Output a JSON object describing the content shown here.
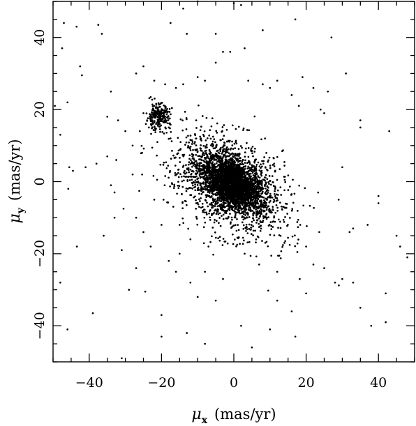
{
  "chart_data": {
    "type": "scatter",
    "title": "",
    "xlabel": {
      "symbol": "μ",
      "subscript": "x",
      "units": "(mas/yr)"
    },
    "ylabel": {
      "symbol": "μ",
      "subscript": "y",
      "units": "(mas/yr)"
    },
    "xlim": [
      -50,
      50
    ],
    "ylim": [
      -50,
      50
    ],
    "x_ticks": [
      -40,
      -20,
      0,
      20,
      40
    ],
    "y_ticks": [
      -40,
      -20,
      0,
      20,
      40
    ],
    "x_tick_labels": [
      "−40",
      "−20",
      "0",
      "20",
      "40"
    ],
    "y_tick_labels": [
      "−40",
      "−20",
      "0",
      "20",
      "40"
    ],
    "grid": false,
    "legend": "none",
    "marker_color": "#000000",
    "series": [
      {
        "distribution": "dense clump of stars centred near (0, 0) with broad halo; secondary clump near (−21, 18)",
        "points": [
          [
            -47,
            44
          ],
          [
            -43.5,
            43
          ],
          [
            -37.5,
            43.5
          ],
          [
            -36.5,
            41
          ],
          [
            -47.5,
            37
          ],
          [
            -42.5,
            32
          ],
          [
            -42,
            29.5
          ],
          [
            -46,
            22
          ],
          [
            -49.5,
            21
          ],
          [
            -48,
            13
          ],
          [
            -45.5,
            4
          ],
          [
            -44.5,
            3
          ],
          [
            -41,
            4
          ],
          [
            -35,
            7
          ],
          [
            -32.5,
            6
          ],
          [
            -45.8,
            -2
          ],
          [
            -43.4,
            -18
          ],
          [
            -36,
            -15
          ],
          [
            -33,
            -10
          ],
          [
            -30.5,
            -7.5
          ],
          [
            -29,
            -30
          ],
          [
            -31,
            -49
          ],
          [
            -39,
            -36.5
          ],
          [
            -24.5,
            -30.5
          ],
          [
            -20,
            -37
          ],
          [
            -13,
            -42
          ],
          [
            -20,
            -43
          ],
          [
            -8,
            -45
          ],
          [
            -10,
            -32
          ],
          [
            -5,
            -33
          ],
          [
            -27,
            -10
          ],
          [
            -25,
            -14
          ],
          [
            -23,
            -18
          ],
          [
            -22,
            -5
          ],
          [
            -18,
            -22
          ],
          [
            -16,
            -25
          ],
          [
            -15,
            -12
          ],
          [
            -12,
            -28
          ],
          [
            -8,
            -25
          ],
          [
            -3,
            -27
          ],
          [
            -27,
            30
          ],
          [
            -25,
            32
          ],
          [
            -22,
            28
          ],
          [
            -19,
            27
          ],
          [
            -16,
            26
          ],
          [
            -14,
            27
          ],
          [
            -10,
            29
          ],
          [
            -8,
            28
          ],
          [
            -5,
            33
          ],
          [
            -3,
            36
          ],
          [
            0,
            49.5
          ],
          [
            2,
            49
          ],
          [
            -1,
            36
          ],
          [
            3,
            37
          ],
          [
            4,
            28
          ],
          [
            8,
            27
          ],
          [
            10,
            26
          ],
          [
            12,
            28
          ],
          [
            16,
            24
          ],
          [
            18,
            21
          ],
          [
            24,
            20
          ],
          [
            25,
            19
          ],
          [
            29,
            -5
          ],
          [
            30,
            4
          ],
          [
            35,
            17
          ],
          [
            35,
            15
          ],
          [
            40,
            -4
          ],
          [
            40,
            -6
          ],
          [
            43,
            14
          ],
          [
            45,
            -15
          ],
          [
            46,
            -18
          ],
          [
            48,
            -21
          ],
          [
            30,
            -27
          ],
          [
            33,
            -28
          ],
          [
            35,
            -35
          ],
          [
            38,
            -40
          ],
          [
            42,
            -39
          ],
          [
            42,
            -31
          ],
          [
            16,
            -36
          ],
          [
            12,
            -33
          ],
          [
            10,
            -41
          ],
          [
            17,
            -43
          ],
          [
            5,
            -46
          ],
          [
            2,
            -40
          ],
          [
            20,
            -31
          ],
          [
            25,
            -24
          ],
          [
            28,
            -28
          ],
          [
            32,
            -14
          ],
          [
            33,
            -13
          ],
          [
            37,
            -12
          ],
          [
            -31,
            -19
          ],
          [
            -33,
            -3
          ],
          [
            -34,
            -1
          ],
          [
            -28,
            2
          ],
          [
            -28,
            10
          ],
          [
            -30,
            14
          ],
          [
            -32,
            17
          ],
          [
            -35,
            18
          ],
          [
            -34,
            25
          ],
          [
            -38,
            5
          ],
          [
            -48,
            -28
          ],
          [
            -46,
            -41
          ],
          [
            -17.5,
            44
          ],
          [
            -13,
            41
          ],
          [
            -10,
            50
          ],
          [
            -14,
            48
          ],
          [
            -5,
            41
          ],
          [
            8,
            42
          ],
          [
            17,
            45
          ],
          [
            27,
            40
          ],
          [
            26,
            25
          ],
          [
            31,
            30
          ],
          [
            22,
            26
          ],
          [
            19,
            29
          ],
          [
            -27,
            -24
          ],
          [
            -15,
            -20
          ],
          [
            12,
            -25
          ],
          [
            14,
            -17
          ],
          [
            20,
            -18
          ],
          [
            22,
            -23
          ],
          [
            -20,
            -12
          ],
          [
            -12,
            -16
          ],
          [
            -7,
            -18
          ],
          [
            3,
            -20
          ],
          [
            7,
            -23
          ],
          [
            -22,
            19
          ],
          [
            -21,
            20.5
          ],
          [
            -20.5,
            17.5
          ],
          [
            -22.5,
            17
          ],
          [
            -21.5,
            16
          ],
          [
            -20,
            19.5
          ],
          [
            -19.5,
            16.5
          ],
          [
            -23,
            18.5
          ],
          [
            -21,
            15.5
          ],
          [
            -20.2,
            18.2
          ],
          [
            -22,
            21
          ],
          [
            -24,
            17
          ],
          [
            -19,
            18
          ],
          [
            -21.8,
            14.8
          ],
          [
            -20.8,
            19.8
          ],
          [
            -18,
            15
          ],
          [
            -25,
            19
          ],
          [
            -23.5,
            15
          ],
          [
            -17.5,
            12
          ],
          [
            -26,
            14
          ]
        ]
      }
    ]
  }
}
